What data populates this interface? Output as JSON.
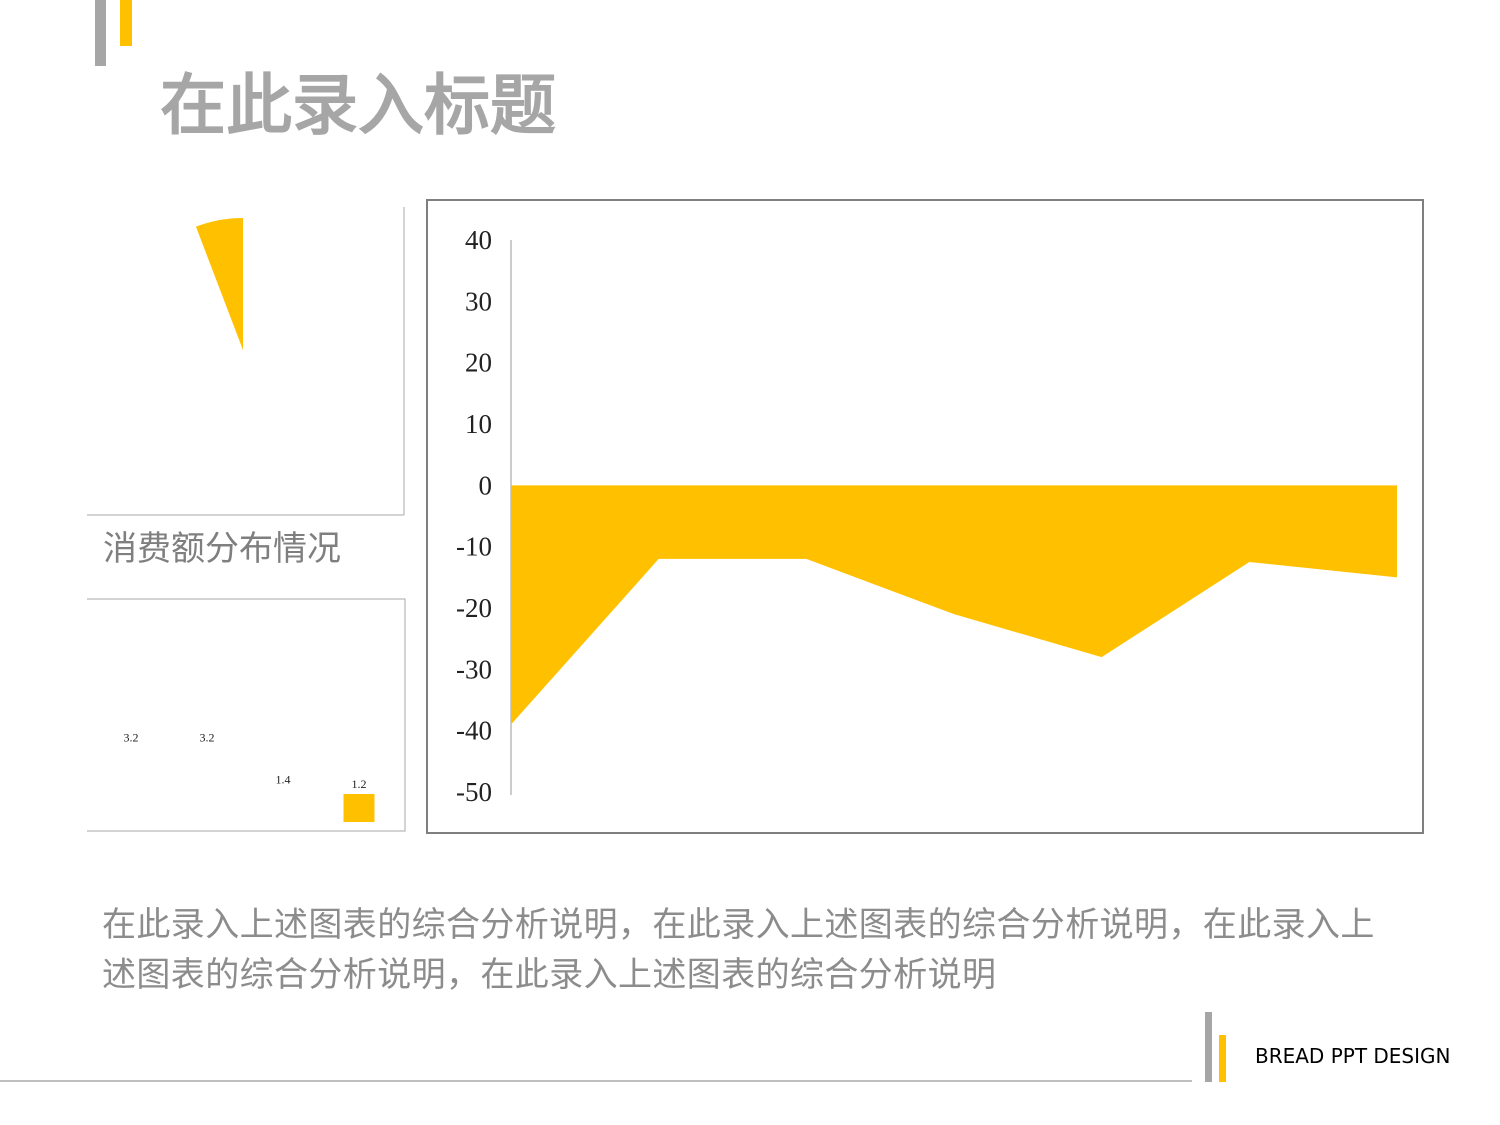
{
  "title": "在此录入标题",
  "chart_data": [
    {
      "type": "pie",
      "title": "消费额分布情况",
      "values": [
        94.2,
        5.8
      ],
      "colors": [
        "#ffffff",
        "#ffc000"
      ]
    },
    {
      "type": "bar",
      "categories": [
        null,
        null,
        null,
        null
      ],
      "values": [
        3.2,
        3.2,
        1.4,
        1.2
      ],
      "colors": [
        "#ffffff",
        "#ffffff",
        "#ffffff",
        "#ffc000"
      ],
      "ylim": [
        0,
        9
      ]
    },
    {
      "type": "area",
      "categories": [
        null,
        null,
        null,
        null,
        null,
        null,
        null
      ],
      "values": [
        -39,
        -12,
        -12,
        -21,
        -28,
        -12.5,
        -15
      ],
      "color": "#ffc000",
      "ylim": [
        -50,
        40
      ],
      "yticks": [
        -50,
        -40,
        -30,
        -20,
        -10,
        0,
        10,
        20,
        30,
        40
      ],
      "grid": false
    }
  ],
  "description": "在此录入上述图表的综合分析说明，在此录入上述图表的综合分析说明，在此录入上述图表的综合分析说明，在此录入上述图表的综合分析说明",
  "footer": "BREAD PPT DESIGN"
}
